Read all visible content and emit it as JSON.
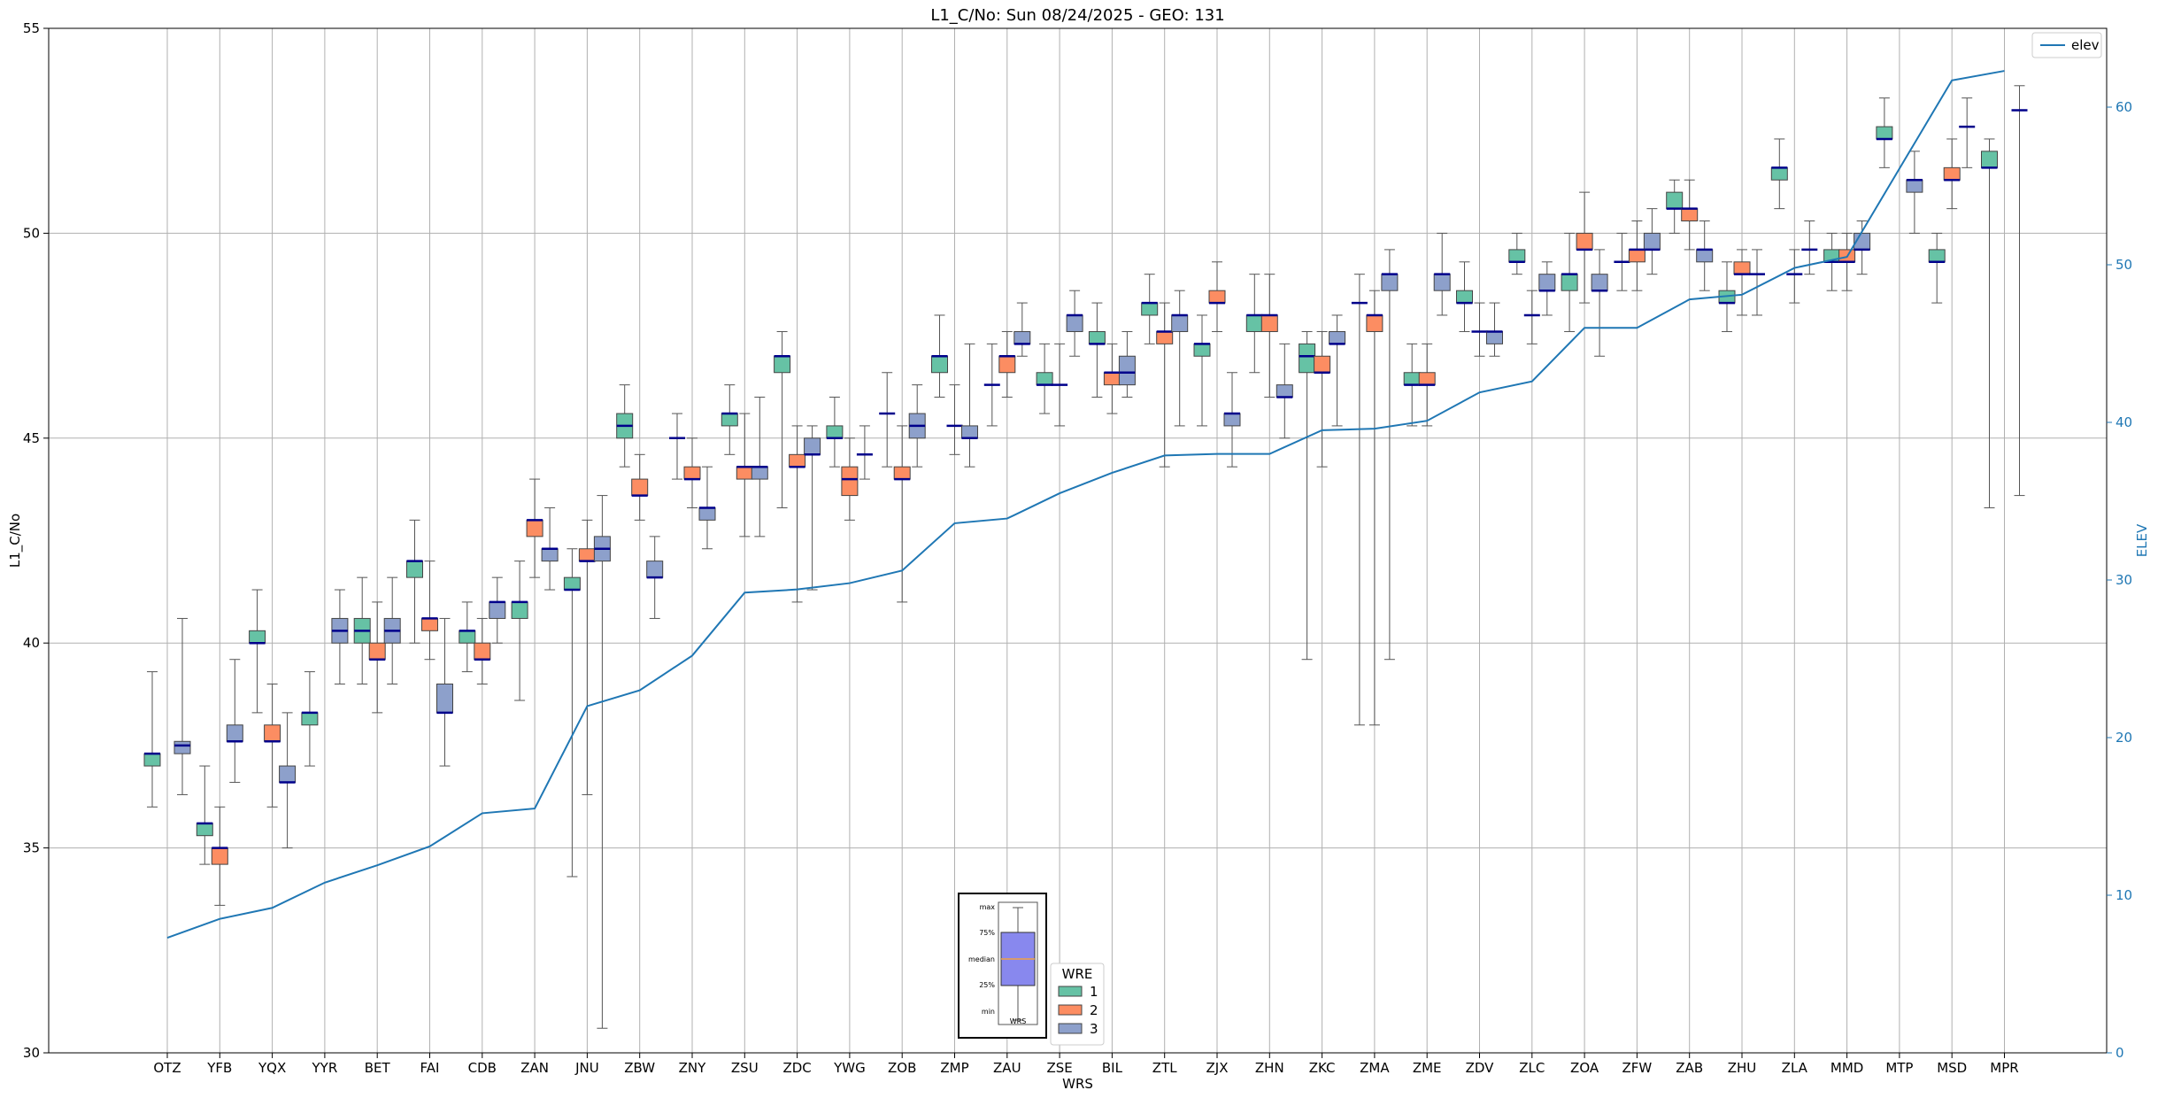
{
  "chart_data": {
    "type": "box",
    "title": "L1_C/No: Sun 08/24/2025 - GEO: 131",
    "xlabel": "WRS",
    "ylabel": "L1_C/No",
    "y2label": "ELEV",
    "ylim": [
      30,
      55
    ],
    "y2lim": [
      0,
      65
    ],
    "yticks": [
      30,
      35,
      40,
      45,
      50,
      55
    ],
    "y2ticks": [
      0,
      10,
      20,
      30,
      40,
      50,
      60
    ],
    "grid": true,
    "categories": [
      "OTZ",
      "YFB",
      "YQX",
      "YYR",
      "BET",
      "FAI",
      "CDB",
      "ZAN",
      "JNU",
      "ZBW",
      "ZNY",
      "ZSU",
      "ZDC",
      "YWG",
      "ZOB",
      "ZMP",
      "ZAU",
      "ZSE",
      "BIL",
      "ZTL",
      "ZJX",
      "ZHN",
      "ZKC",
      "ZMA",
      "ZME",
      "ZDV",
      "ZLC",
      "ZOA",
      "ZFW",
      "ZAB",
      "ZHU",
      "ZLA",
      "MMD",
      "MTP",
      "MSD",
      "MPR"
    ],
    "wre_colors": {
      "1": "#66c2a5",
      "2": "#fc8d62",
      "3": "#8da0cb"
    },
    "median_color": "#00008b",
    "elev_line_color": "#1f77b4",
    "boxes": [
      {
        "site": "OTZ",
        "wre": 1,
        "min": 36.0,
        "q1": 37.0,
        "median": 37.3,
        "q3": 37.3,
        "max": 39.3
      },
      {
        "site": "OTZ",
        "wre": 3,
        "min": 36.3,
        "q1": 37.3,
        "median": 37.5,
        "q3": 37.6,
        "max": 40.6
      },
      {
        "site": "YFB",
        "wre": 1,
        "min": 34.6,
        "q1": 35.3,
        "median": 35.6,
        "q3": 35.6,
        "max": 37.0
      },
      {
        "site": "YFB",
        "wre": 2,
        "min": 33.6,
        "q1": 34.6,
        "median": 35.0,
        "q3": 35.0,
        "max": 36.0
      },
      {
        "site": "YFB",
        "wre": 3,
        "min": 36.6,
        "q1": 37.6,
        "median": 37.6,
        "q3": 38.0,
        "max": 39.6
      },
      {
        "site": "YQX",
        "wre": 1,
        "min": 38.3,
        "q1": 40.0,
        "median": 40.0,
        "q3": 40.3,
        "max": 41.3
      },
      {
        "site": "YQX",
        "wre": 2,
        "min": 36.0,
        "q1": 37.6,
        "median": 37.6,
        "q3": 38.0,
        "max": 39.0
      },
      {
        "site": "YQX",
        "wre": 3,
        "min": 35.0,
        "q1": 36.6,
        "median": 36.6,
        "q3": 37.0,
        "max": 38.3
      },
      {
        "site": "YYR",
        "wre": 1,
        "min": 37.0,
        "q1": 38.0,
        "median": 38.3,
        "q3": 38.3,
        "max": 39.3
      },
      {
        "site": "YYR",
        "wre": 3,
        "min": 39.0,
        "q1": 40.0,
        "median": 40.3,
        "q3": 40.6,
        "max": 41.3
      },
      {
        "site": "BET",
        "wre": 1,
        "min": 39.0,
        "q1": 40.0,
        "median": 40.3,
        "q3": 40.6,
        "max": 41.6
      },
      {
        "site": "BET",
        "wre": 2,
        "min": 38.3,
        "q1": 39.6,
        "median": 39.6,
        "q3": 40.0,
        "max": 41.0
      },
      {
        "site": "BET",
        "wre": 3,
        "min": 39.0,
        "q1": 40.0,
        "median": 40.3,
        "q3": 40.6,
        "max": 41.6
      },
      {
        "site": "FAI",
        "wre": 1,
        "min": 40.0,
        "q1": 41.6,
        "median": 42.0,
        "q3": 42.0,
        "max": 43.0
      },
      {
        "site": "FAI",
        "wre": 2,
        "min": 39.6,
        "q1": 40.3,
        "median": 40.6,
        "q3": 40.6,
        "max": 42.0
      },
      {
        "site": "FAI",
        "wre": 3,
        "min": 37.0,
        "q1": 38.3,
        "median": 38.3,
        "q3": 39.0,
        "max": 40.6
      },
      {
        "site": "CDB",
        "wre": 1,
        "min": 39.3,
        "q1": 40.0,
        "median": 40.3,
        "q3": 40.3,
        "max": 41.0
      },
      {
        "site": "CDB",
        "wre": 2,
        "min": 39.0,
        "q1": 39.6,
        "median": 39.6,
        "q3": 40.0,
        "max": 40.6
      },
      {
        "site": "CDB",
        "wre": 3,
        "min": 40.0,
        "q1": 40.6,
        "median": 41.0,
        "q3": 41.0,
        "max": 41.6
      },
      {
        "site": "ZAN",
        "wre": 1,
        "min": 38.6,
        "q1": 40.6,
        "median": 41.0,
        "q3": 41.0,
        "max": 42.0
      },
      {
        "site": "ZAN",
        "wre": 2,
        "min": 41.6,
        "q1": 42.6,
        "median": 43.0,
        "q3": 43.0,
        "max": 44.0
      },
      {
        "site": "ZAN",
        "wre": 3,
        "min": 41.3,
        "q1": 42.0,
        "median": 42.3,
        "q3": 42.3,
        "max": 43.3
      },
      {
        "site": "JNU",
        "wre": 1,
        "min": 34.3,
        "q1": 41.3,
        "median": 41.3,
        "q3": 41.6,
        "max": 42.3
      },
      {
        "site": "JNU",
        "wre": 2,
        "min": 36.3,
        "q1": 42.0,
        "median": 42.0,
        "q3": 42.3,
        "max": 43.0
      },
      {
        "site": "JNU",
        "wre": 3,
        "min": 30.6,
        "q1": 42.0,
        "median": 42.3,
        "q3": 42.6,
        "max": 43.6
      },
      {
        "site": "ZBW",
        "wre": 1,
        "min": 44.3,
        "q1": 45.0,
        "median": 45.3,
        "q3": 45.6,
        "max": 46.3
      },
      {
        "site": "ZBW",
        "wre": 2,
        "min": 43.0,
        "q1": 43.6,
        "median": 43.6,
        "q3": 44.0,
        "max": 44.6
      },
      {
        "site": "ZBW",
        "wre": 3,
        "min": 40.6,
        "q1": 41.6,
        "median": 41.6,
        "q3": 42.0,
        "max": 42.6
      },
      {
        "site": "ZNY",
        "wre": 1,
        "min": 44.0,
        "q1": 45.0,
        "median": 45.0,
        "q3": 45.0,
        "max": 45.6
      },
      {
        "site": "ZNY",
        "wre": 2,
        "min": 43.3,
        "q1": 44.0,
        "median": 44.0,
        "q3": 44.3,
        "max": 45.0
      },
      {
        "site": "ZNY",
        "wre": 3,
        "min": 42.3,
        "q1": 43.0,
        "median": 43.3,
        "q3": 43.3,
        "max": 44.3
      },
      {
        "site": "ZSU",
        "wre": 1,
        "min": 44.6,
        "q1": 45.3,
        "median": 45.6,
        "q3": 45.6,
        "max": 46.3
      },
      {
        "site": "ZSU",
        "wre": 2,
        "min": 42.6,
        "q1": 44.0,
        "median": 44.3,
        "q3": 44.3,
        "max": 45.6
      },
      {
        "site": "ZSU",
        "wre": 3,
        "min": 42.6,
        "q1": 44.0,
        "median": 44.3,
        "q3": 44.3,
        "max": 46.0
      },
      {
        "site": "ZDC",
        "wre": 1,
        "min": 43.3,
        "q1": 46.6,
        "median": 47.0,
        "q3": 47.0,
        "max": 47.6
      },
      {
        "site": "ZDC",
        "wre": 2,
        "min": 41.0,
        "q1": 44.3,
        "median": 44.3,
        "q3": 44.6,
        "max": 45.3
      },
      {
        "site": "ZDC",
        "wre": 3,
        "min": 41.3,
        "q1": 44.6,
        "median": 44.6,
        "q3": 45.0,
        "max": 45.3
      },
      {
        "site": "YWG",
        "wre": 1,
        "min": 44.3,
        "q1": 45.0,
        "median": 45.0,
        "q3": 45.3,
        "max": 46.0
      },
      {
        "site": "YWG",
        "wre": 2,
        "min": 43.0,
        "q1": 43.6,
        "median": 44.0,
        "q3": 44.3,
        "max": 45.0
      },
      {
        "site": "YWG",
        "wre": 3,
        "min": 44.0,
        "q1": 44.6,
        "median": 44.6,
        "q3": 44.6,
        "max": 45.3
      },
      {
        "site": "ZOB",
        "wre": 1,
        "min": 44.3,
        "q1": 45.6,
        "median": 45.6,
        "q3": 45.6,
        "max": 46.6
      },
      {
        "site": "ZOB",
        "wre": 2,
        "min": 41.0,
        "q1": 44.0,
        "median": 44.0,
        "q3": 44.3,
        "max": 45.3
      },
      {
        "site": "ZOB",
        "wre": 3,
        "min": 44.3,
        "q1": 45.0,
        "median": 45.3,
        "q3": 45.6,
        "max": 46.3
      },
      {
        "site": "ZMP",
        "wre": 1,
        "min": 46.0,
        "q1": 46.6,
        "median": 47.0,
        "q3": 47.0,
        "max": 48.0
      },
      {
        "site": "ZMP",
        "wre": 2,
        "min": 44.6,
        "q1": 45.3,
        "median": 45.3,
        "q3": 45.3,
        "max": 46.3
      },
      {
        "site": "ZMP",
        "wre": 3,
        "min": 44.3,
        "q1": 45.0,
        "median": 45.0,
        "q3": 45.3,
        "max": 47.3
      },
      {
        "site": "ZAU",
        "wre": 1,
        "min": 45.3,
        "q1": 46.3,
        "median": 46.3,
        "q3": 46.3,
        "max": 47.3
      },
      {
        "site": "ZAU",
        "wre": 2,
        "min": 46.0,
        "q1": 46.6,
        "median": 47.0,
        "q3": 47.0,
        "max": 47.6
      },
      {
        "site": "ZAU",
        "wre": 3,
        "min": 47.0,
        "q1": 47.3,
        "median": 47.3,
        "q3": 47.6,
        "max": 48.3
      },
      {
        "site": "ZSE",
        "wre": 1,
        "min": 45.6,
        "q1": 46.3,
        "median": 46.3,
        "q3": 46.6,
        "max": 47.3
      },
      {
        "site": "ZSE",
        "wre": 2,
        "min": 45.3,
        "q1": 46.3,
        "median": 46.3,
        "q3": 46.3,
        "max": 47.3
      },
      {
        "site": "ZSE",
        "wre": 3,
        "min": 47.0,
        "q1": 47.6,
        "median": 48.0,
        "q3": 48.0,
        "max": 48.6
      },
      {
        "site": "BIL",
        "wre": 1,
        "min": 46.0,
        "q1": 47.3,
        "median": 47.3,
        "q3": 47.6,
        "max": 48.3
      },
      {
        "site": "BIL",
        "wre": 2,
        "min": 45.6,
        "q1": 46.3,
        "median": 46.6,
        "q3": 46.6,
        "max": 47.3
      },
      {
        "site": "BIL",
        "wre": 3,
        "min": 46.0,
        "q1": 46.3,
        "median": 46.6,
        "q3": 47.0,
        "max": 47.6
      },
      {
        "site": "ZTL",
        "wre": 1,
        "min": 47.3,
        "q1": 48.0,
        "median": 48.3,
        "q3": 48.3,
        "max": 49.0
      },
      {
        "site": "ZTL",
        "wre": 2,
        "min": 44.3,
        "q1": 47.3,
        "median": 47.6,
        "q3": 47.6,
        "max": 48.3
      },
      {
        "site": "ZTL",
        "wre": 3,
        "min": 45.3,
        "q1": 47.6,
        "median": 48.0,
        "q3": 48.0,
        "max": 48.6
      },
      {
        "site": "ZJX",
        "wre": 1,
        "min": 45.3,
        "q1": 47.0,
        "median": 47.3,
        "q3": 47.3,
        "max": 48.0
      },
      {
        "site": "ZJX",
        "wre": 2,
        "min": 47.6,
        "q1": 48.3,
        "median": 48.3,
        "q3": 48.6,
        "max": 49.3
      },
      {
        "site": "ZJX",
        "wre": 3,
        "min": 44.3,
        "q1": 45.3,
        "median": 45.6,
        "q3": 45.6,
        "max": 46.6
      },
      {
        "site": "ZHN",
        "wre": 1,
        "min": 46.6,
        "q1": 47.6,
        "median": 48.0,
        "q3": 48.0,
        "max": 49.0
      },
      {
        "site": "ZHN",
        "wre": 2,
        "min": 46.0,
        "q1": 47.6,
        "median": 48.0,
        "q3": 48.0,
        "max": 49.0
      },
      {
        "site": "ZHN",
        "wre": 3,
        "min": 45.0,
        "q1": 46.0,
        "median": 46.0,
        "q3": 46.3,
        "max": 47.3
      },
      {
        "site": "ZKC",
        "wre": 1,
        "min": 39.6,
        "q1": 46.6,
        "median": 47.0,
        "q3": 47.3,
        "max": 47.6
      },
      {
        "site": "ZKC",
        "wre": 2,
        "min": 44.3,
        "q1": 46.6,
        "median": 46.6,
        "q3": 47.0,
        "max": 47.6
      },
      {
        "site": "ZKC",
        "wre": 3,
        "min": 45.3,
        "q1": 47.3,
        "median": 47.3,
        "q3": 47.6,
        "max": 48.0
      },
      {
        "site": "ZMA",
        "wre": 1,
        "min": 38.0,
        "q1": 48.3,
        "median": 48.3,
        "q3": 48.3,
        "max": 49.0
      },
      {
        "site": "ZMA",
        "wre": 2,
        "min": 38.0,
        "q1": 47.6,
        "median": 48.0,
        "q3": 48.0,
        "max": 48.6
      },
      {
        "site": "ZMA",
        "wre": 3,
        "min": 39.6,
        "q1": 48.6,
        "median": 49.0,
        "q3": 49.0,
        "max": 49.6
      },
      {
        "site": "ZME",
        "wre": 1,
        "min": 45.3,
        "q1": 46.3,
        "median": 46.3,
        "q3": 46.6,
        "max": 47.3
      },
      {
        "site": "ZME",
        "wre": 2,
        "min": 45.3,
        "q1": 46.3,
        "median": 46.3,
        "q3": 46.6,
        "max": 47.3
      },
      {
        "site": "ZME",
        "wre": 3,
        "min": 48.0,
        "q1": 48.6,
        "median": 49.0,
        "q3": 49.0,
        "max": 50.0
      },
      {
        "site": "ZDV",
        "wre": 1,
        "min": 47.6,
        "q1": 48.3,
        "median": 48.3,
        "q3": 48.6,
        "max": 49.3
      },
      {
        "site": "ZDV",
        "wre": 2,
        "min": 47.0,
        "q1": 47.6,
        "median": 47.6,
        "q3": 47.6,
        "max": 48.3
      },
      {
        "site": "ZDV",
        "wre": 3,
        "min": 47.0,
        "q1": 47.3,
        "median": 47.6,
        "q3": 47.6,
        "max": 48.3
      },
      {
        "site": "ZLC",
        "wre": 1,
        "min": 49.0,
        "q1": 49.3,
        "median": 49.3,
        "q3": 49.6,
        "max": 50.0
      },
      {
        "site": "ZLC",
        "wre": 2,
        "min": 47.3,
        "q1": 48.0,
        "median": 48.0,
        "q3": 48.0,
        "max": 48.6
      },
      {
        "site": "ZLC",
        "wre": 3,
        "min": 48.0,
        "q1": 48.6,
        "median": 48.6,
        "q3": 49.0,
        "max": 49.3
      },
      {
        "site": "ZOA",
        "wre": 1,
        "min": 47.6,
        "q1": 48.6,
        "median": 49.0,
        "q3": 49.0,
        "max": 50.0
      },
      {
        "site": "ZOA",
        "wre": 2,
        "min": 48.3,
        "q1": 49.6,
        "median": 49.6,
        "q3": 50.0,
        "max": 51.0
      },
      {
        "site": "ZOA",
        "wre": 3,
        "min": 47.0,
        "q1": 48.6,
        "median": 48.6,
        "q3": 49.0,
        "max": 49.6
      },
      {
        "site": "ZFW",
        "wre": 1,
        "min": 48.6,
        "q1": 49.3,
        "median": 49.3,
        "q3": 49.3,
        "max": 50.0
      },
      {
        "site": "ZFW",
        "wre": 2,
        "min": 48.6,
        "q1": 49.3,
        "median": 49.6,
        "q3": 49.6,
        "max": 50.3
      },
      {
        "site": "ZFW",
        "wre": 3,
        "min": 49.0,
        "q1": 49.6,
        "median": 49.6,
        "q3": 50.0,
        "max": 50.6
      },
      {
        "site": "ZAB",
        "wre": 1,
        "min": 50.0,
        "q1": 50.6,
        "median": 50.6,
        "q3": 51.0,
        "max": 51.3
      },
      {
        "site": "ZAB",
        "wre": 2,
        "min": 49.6,
        "q1": 50.3,
        "median": 50.6,
        "q3": 50.6,
        "max": 51.3
      },
      {
        "site": "ZAB",
        "wre": 3,
        "min": 48.6,
        "q1": 49.3,
        "median": 49.6,
        "q3": 49.6,
        "max": 50.3
      },
      {
        "site": "ZHU",
        "wre": 1,
        "min": 47.6,
        "q1": 48.3,
        "median": 48.3,
        "q3": 48.6,
        "max": 49.3
      },
      {
        "site": "ZHU",
        "wre": 2,
        "min": 48.0,
        "q1": 49.0,
        "median": 49.0,
        "q3": 49.3,
        "max": 49.6
      },
      {
        "site": "ZHU",
        "wre": 3,
        "min": 48.0,
        "q1": 49.0,
        "median": 49.0,
        "q3": 49.0,
        "max": 49.6
      },
      {
        "site": "ZLA",
        "wre": 1,
        "min": 50.6,
        "q1": 51.3,
        "median": 51.6,
        "q3": 51.6,
        "max": 52.3
      },
      {
        "site": "ZLA",
        "wre": 2,
        "min": 48.3,
        "q1": 49.0,
        "median": 49.0,
        "q3": 49.0,
        "max": 49.6
      },
      {
        "site": "ZLA",
        "wre": 3,
        "min": 49.0,
        "q1": 49.6,
        "median": 49.6,
        "q3": 49.6,
        "max": 50.3
      },
      {
        "site": "MMD",
        "wre": 1,
        "min": 48.6,
        "q1": 49.3,
        "median": 49.3,
        "q3": 49.6,
        "max": 50.0
      },
      {
        "site": "MMD",
        "wre": 2,
        "min": 48.6,
        "q1": 49.3,
        "median": 49.3,
        "q3": 49.6,
        "max": 50.0
      },
      {
        "site": "MMD",
        "wre": 3,
        "min": 49.0,
        "q1": 49.6,
        "median": 49.6,
        "q3": 50.0,
        "max": 50.3
      },
      {
        "site": "MTP",
        "wre": 1,
        "min": 51.6,
        "q1": 52.3,
        "median": 52.3,
        "q3": 52.6,
        "max": 53.3
      },
      {
        "site": "MTP",
        "wre": 3,
        "min": 50.0,
        "q1": 51.0,
        "median": 51.3,
        "q3": 51.3,
        "max": 52.0
      },
      {
        "site": "MSD",
        "wre": 1,
        "min": 48.3,
        "q1": 49.3,
        "median": 49.3,
        "q3": 49.6,
        "max": 50.0
      },
      {
        "site": "MSD",
        "wre": 2,
        "min": 50.6,
        "q1": 51.3,
        "median": 51.3,
        "q3": 51.6,
        "max": 52.3
      },
      {
        "site": "MSD",
        "wre": 3,
        "min": 51.6,
        "q1": 52.6,
        "median": 52.6,
        "q3": 52.6,
        "max": 53.3
      },
      {
        "site": "MPR",
        "wre": 1,
        "min": 43.3,
        "q1": 51.6,
        "median": 51.6,
        "q3": 52.0,
        "max": 52.3
      },
      {
        "site": "MPR",
        "wre": 3,
        "min": 43.6,
        "q1": 53.0,
        "median": 53.0,
        "q3": 53.0,
        "max": 53.6
      }
    ],
    "elev": {
      "label": "elev",
      "values": [
        7.3,
        8.5,
        9.2,
        10.8,
        11.9,
        13.1,
        15.2,
        15.5,
        22.0,
        23.0,
        25.2,
        29.2,
        29.4,
        29.8,
        30.6,
        33.6,
        33.9,
        35.5,
        36.8,
        37.9,
        38.0,
        38.0,
        39.5,
        39.6,
        40.1,
        41.9,
        42.6,
        46.0,
        46.0,
        47.8,
        48.1,
        49.8,
        50.5,
        56.1,
        61.7,
        62.3
      ]
    },
    "legend": {
      "label": "elev",
      "position": "top-right"
    },
    "wre_legend": {
      "title": "WRE",
      "entries": [
        "1",
        "2",
        "3"
      ]
    },
    "inset_key": {
      "max": "max",
      "q3": "75%",
      "median": "median",
      "q1": "25%",
      "min": "min",
      "xlabel": "WRS"
    }
  }
}
